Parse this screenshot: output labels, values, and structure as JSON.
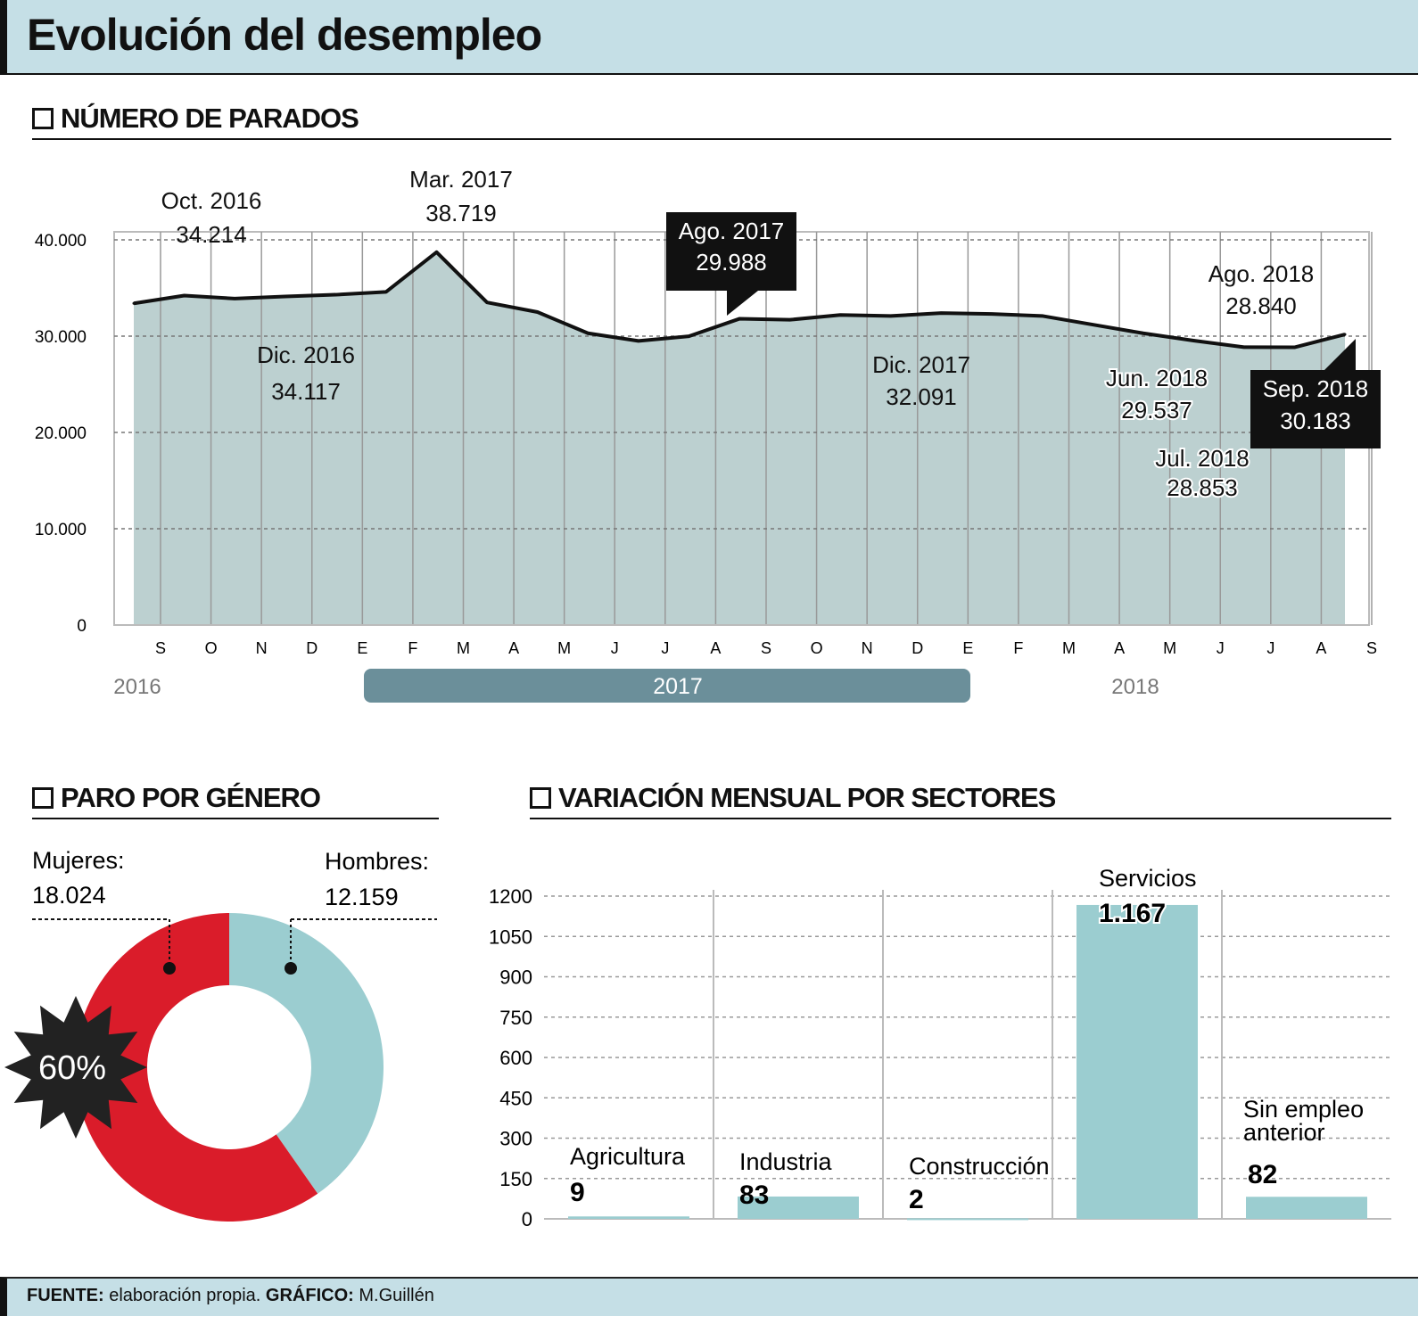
{
  "title": "Evolución del desempleo",
  "sections": {
    "parados": "NÚMERO DE PARADOS",
    "genero": "PARO POR GÉNERO",
    "sectores": "VARIACIÓN MENSUAL POR SECTORES"
  },
  "footer": {
    "fuente_label": "FUENTE:",
    "fuente": "elaboración propia.",
    "grafico_label": "GRÁFICO:",
    "grafico": "M.Guillén"
  },
  "colors": {
    "area": "#bcd0d0",
    "line": "#111111",
    "women": "#da1c2a",
    "men": "#9bcdd0",
    "year_bar": "#6b8f9a",
    "bars": "#9bcdd0"
  },
  "chart_data": [
    {
      "type": "area",
      "ylim": [
        0,
        40000
      ],
      "grid": true,
      "yticks": [
        "0",
        "10.000",
        "20.000",
        "30.000",
        "40.000"
      ],
      "months": [
        "S",
        "O",
        "N",
        "D",
        "E",
        "F",
        "M",
        "A",
        "M",
        "J",
        "J",
        "A",
        "S",
        "O",
        "N",
        "D",
        "E",
        "F",
        "M",
        "A",
        "M",
        "J",
        "J",
        "A",
        "S"
      ],
      "values": [
        33400,
        34214,
        33900,
        34117,
        34300,
        34600,
        38719,
        33500,
        32500,
        30300,
        29500,
        29988,
        31800,
        31700,
        32200,
        32091,
        32400,
        32300,
        32100,
        31200,
        30300,
        29537,
        28853,
        28840,
        30183
      ],
      "years": [
        "2016",
        "2017",
        "2018"
      ],
      "annotations": [
        {
          "i": 1,
          "label": "Oct. 2016",
          "value": "34.214"
        },
        {
          "i": 3,
          "label": "Dic. 2016",
          "value": "34.117"
        },
        {
          "i": 6,
          "label": "Mar. 2017",
          "value": "38.719"
        },
        {
          "i": 11,
          "label": "Ago. 2017",
          "value": "29.988"
        },
        {
          "i": 15,
          "label": "Dic. 2017",
          "value": "32.091"
        },
        {
          "i": 21,
          "label": "Jun. 2018",
          "value": "29.537"
        },
        {
          "i": 22,
          "label": "Jul. 2018",
          "value": "28.853"
        },
        {
          "i": 23,
          "label": "Ago. 2018",
          "value": "28.840"
        },
        {
          "i": 24,
          "label": "Sep. 2018",
          "value": "30.183"
        }
      ]
    },
    {
      "type": "pie",
      "donut": true,
      "slices": [
        {
          "name": "Mujeres:",
          "value": 18024,
          "label": "18.024"
        },
        {
          "name": "Hombres:",
          "value": 12159,
          "label": "12.159"
        }
      ],
      "badge": "60%"
    },
    {
      "type": "bar",
      "ylim": [
        0,
        1200
      ],
      "grid": true,
      "yticks": [
        "0",
        "150",
        "300",
        "450",
        "600",
        "750",
        "900",
        "1050",
        "1200"
      ],
      "categories": [
        "Agricultura",
        "Industria",
        "Construcción",
        "Servicios",
        "Sin empleo anterior"
      ],
      "values": [
        9,
        83,
        2,
        1167,
        82
      ],
      "value_labels": [
        "9",
        "83",
        "2",
        "1.167",
        "82"
      ]
    }
  ]
}
